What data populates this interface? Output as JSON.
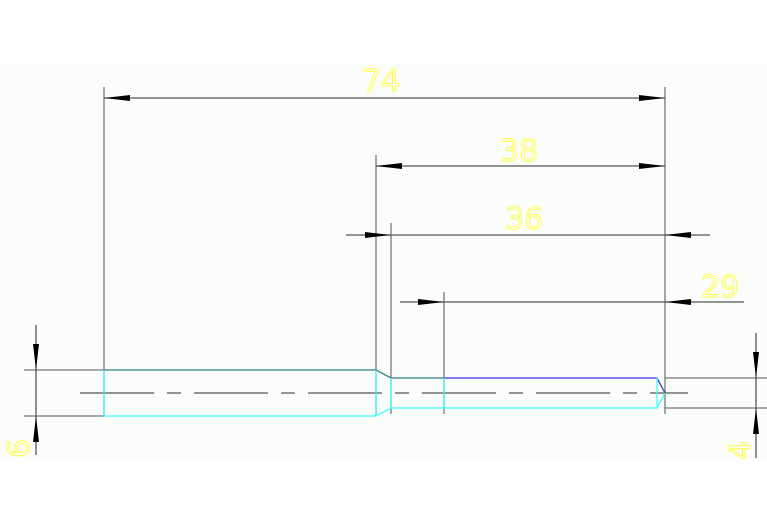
{
  "dimensions": {
    "overall_length": "74",
    "length_38": "38",
    "length_36": "36",
    "length_29": "29",
    "large_diameter": "6",
    "small_diameter": "4"
  },
  "colors": {
    "background": "#fbfdfb",
    "dimension_lines": "#555555",
    "dimension_text": "#ffff40",
    "shaft_edge_cyan": "#40ffff",
    "shaft_edge_teal": "#2f7f7f",
    "shaft_edge_blue": "#4030e0",
    "centerline": "#555555"
  }
}
